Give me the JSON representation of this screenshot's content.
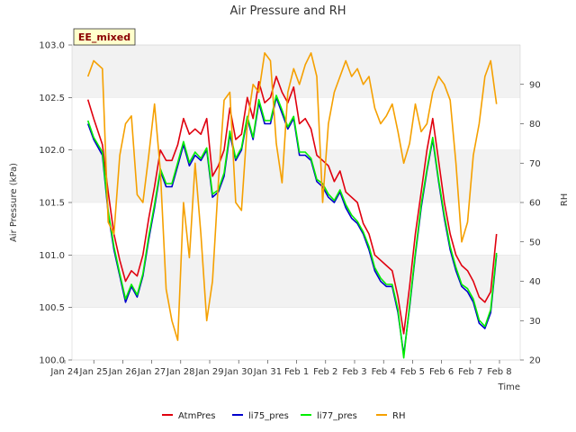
{
  "chart_data": {
    "type": "line",
    "title": "Air Pressure and RH",
    "tag": "EE_mixed",
    "xlabel": "Time",
    "ylabel": "Air Pressure (kPa)",
    "ylabel_right": "RH",
    "x_ticks": [
      "Jan 24",
      "Jan 25",
      "Jan 26",
      "Jan 27",
      "Jan 28",
      "Jan 29",
      "Jan 30",
      "Jan 31",
      "Feb 1",
      "Feb 2",
      "Feb 3",
      "Feb 4",
      "Feb 5",
      "Feb 6",
      "Feb 7",
      "Feb 8"
    ],
    "y_ticks": [
      "100.0",
      "100.5",
      "101.0",
      "101.5",
      "102.0",
      "102.5",
      "103.0"
    ],
    "y2_ticks": [
      "20",
      "30",
      "40",
      "50",
      "60",
      "70",
      "80",
      "90"
    ],
    "ylim": [
      100.0,
      103.0
    ],
    "y2lim": [
      20,
      100
    ],
    "grid": "horizontal bands",
    "legend_position": "bottom",
    "colors": {
      "AtmPres": "#e0000e",
      "li75_pres": "#0000cc",
      "li77_pres": "#00ee00",
      "RH": "#f5a000"
    },
    "x_days": [
      0.3,
      0.5,
      0.8,
      1.0,
      1.2,
      1.4,
      1.6,
      1.8,
      2.0,
      2.2,
      2.4,
      2.6,
      2.8,
      3.0,
      3.2,
      3.4,
      3.6,
      3.8,
      4.0,
      4.2,
      4.4,
      4.6,
      4.8,
      5.0,
      5.2,
      5.4,
      5.6,
      5.8,
      6.0,
      6.2,
      6.4,
      6.6,
      6.8,
      7.0,
      7.2,
      7.4,
      7.6,
      7.8,
      8.0,
      8.2,
      8.4,
      8.6,
      8.8,
      9.0,
      9.2,
      9.4,
      9.6,
      9.8,
      10.0,
      10.2,
      10.4,
      10.6,
      10.8,
      11.0,
      11.2,
      11.4,
      11.6,
      11.8,
      12.0,
      12.2,
      12.4,
      12.6,
      12.8,
      13.0,
      13.2,
      13.4,
      13.6,
      13.8,
      14.0,
      14.2,
      14.4
    ],
    "series": [
      {
        "name": "AtmPres",
        "axis": "left",
        "values": [
          102.48,
          102.3,
          102.05,
          101.6,
          101.2,
          100.95,
          100.75,
          100.85,
          100.8,
          101.0,
          101.35,
          101.65,
          102.0,
          101.9,
          101.9,
          102.05,
          102.3,
          102.15,
          102.2,
          102.15,
          102.3,
          101.75,
          101.85,
          102.0,
          102.4,
          102.1,
          102.15,
          102.5,
          102.3,
          102.65,
          102.45,
          102.5,
          102.7,
          102.55,
          102.45,
          102.6,
          102.25,
          102.3,
          102.2,
          101.95,
          101.9,
          101.85,
          101.7,
          101.8,
          101.6,
          101.55,
          101.5,
          101.3,
          101.2,
          101.0,
          100.95,
          100.9,
          100.85,
          100.6,
          100.25,
          100.7,
          101.2,
          101.6,
          102.0,
          102.3,
          101.9,
          101.5,
          101.2,
          101.0,
          100.9,
          100.85,
          100.75,
          100.6,
          100.55,
          100.65,
          101.2
        ]
      },
      {
        "name": "li75_pres",
        "axis": "left",
        "values": [
          102.25,
          102.1,
          101.95,
          101.4,
          101.05,
          100.8,
          100.55,
          100.7,
          100.6,
          100.8,
          101.15,
          101.45,
          101.8,
          101.65,
          101.65,
          101.85,
          102.05,
          101.85,
          101.95,
          101.9,
          102.0,
          101.55,
          101.6,
          101.75,
          102.15,
          101.9,
          102.0,
          102.3,
          102.1,
          102.45,
          102.25,
          102.25,
          102.5,
          102.35,
          102.2,
          102.3,
          101.95,
          101.95,
          101.9,
          101.7,
          101.65,
          101.55,
          101.5,
          101.6,
          101.45,
          101.35,
          101.3,
          101.2,
          101.05,
          100.85,
          100.75,
          100.7,
          100.7,
          100.45,
          100.05,
          100.5,
          101.0,
          101.45,
          101.8,
          102.1,
          101.7,
          101.35,
          101.05,
          100.85,
          100.7,
          100.65,
          100.55,
          100.35,
          100.3,
          100.45,
          101.0
        ]
      },
      {
        "name": "li77_pres",
        "axis": "left",
        "values": [
          102.28,
          102.12,
          101.98,
          101.42,
          101.08,
          100.82,
          100.58,
          100.72,
          100.62,
          100.82,
          101.18,
          101.48,
          101.82,
          101.68,
          101.68,
          101.88,
          102.08,
          101.88,
          101.98,
          101.92,
          102.02,
          101.58,
          101.62,
          101.78,
          102.18,
          101.92,
          102.02,
          102.32,
          102.12,
          102.48,
          102.28,
          102.28,
          102.52,
          102.38,
          102.22,
          102.32,
          101.98,
          101.98,
          101.92,
          101.72,
          101.68,
          101.58,
          101.52,
          101.62,
          101.48,
          101.38,
          101.32,
          101.22,
          101.08,
          100.88,
          100.78,
          100.72,
          100.72,
          100.48,
          100.02,
          100.52,
          101.02,
          101.48,
          101.82,
          102.12,
          101.72,
          101.38,
          101.08,
          100.88,
          100.72,
          100.68,
          100.58,
          100.38,
          100.32,
          100.48,
          101.02
        ]
      },
      {
        "name": "RH",
        "axis": "right",
        "values": [
          92,
          96,
          94,
          55,
          52,
          72,
          80,
          82,
          62,
          60,
          72,
          85,
          68,
          38,
          30,
          25,
          60,
          46,
          70,
          52,
          30,
          40,
          65,
          86,
          88,
          60,
          58,
          80,
          90,
          88,
          98,
          96,
          75,
          65,
          88,
          94,
          90,
          95,
          98,
          92,
          60,
          80,
          88,
          92,
          96,
          92,
          94,
          90,
          92,
          84,
          80,
          82,
          85,
          78,
          70,
          75,
          85,
          78,
          80,
          88,
          92,
          90,
          86,
          70,
          50,
          55,
          72,
          80,
          92,
          96,
          85
        ]
      }
    ]
  }
}
